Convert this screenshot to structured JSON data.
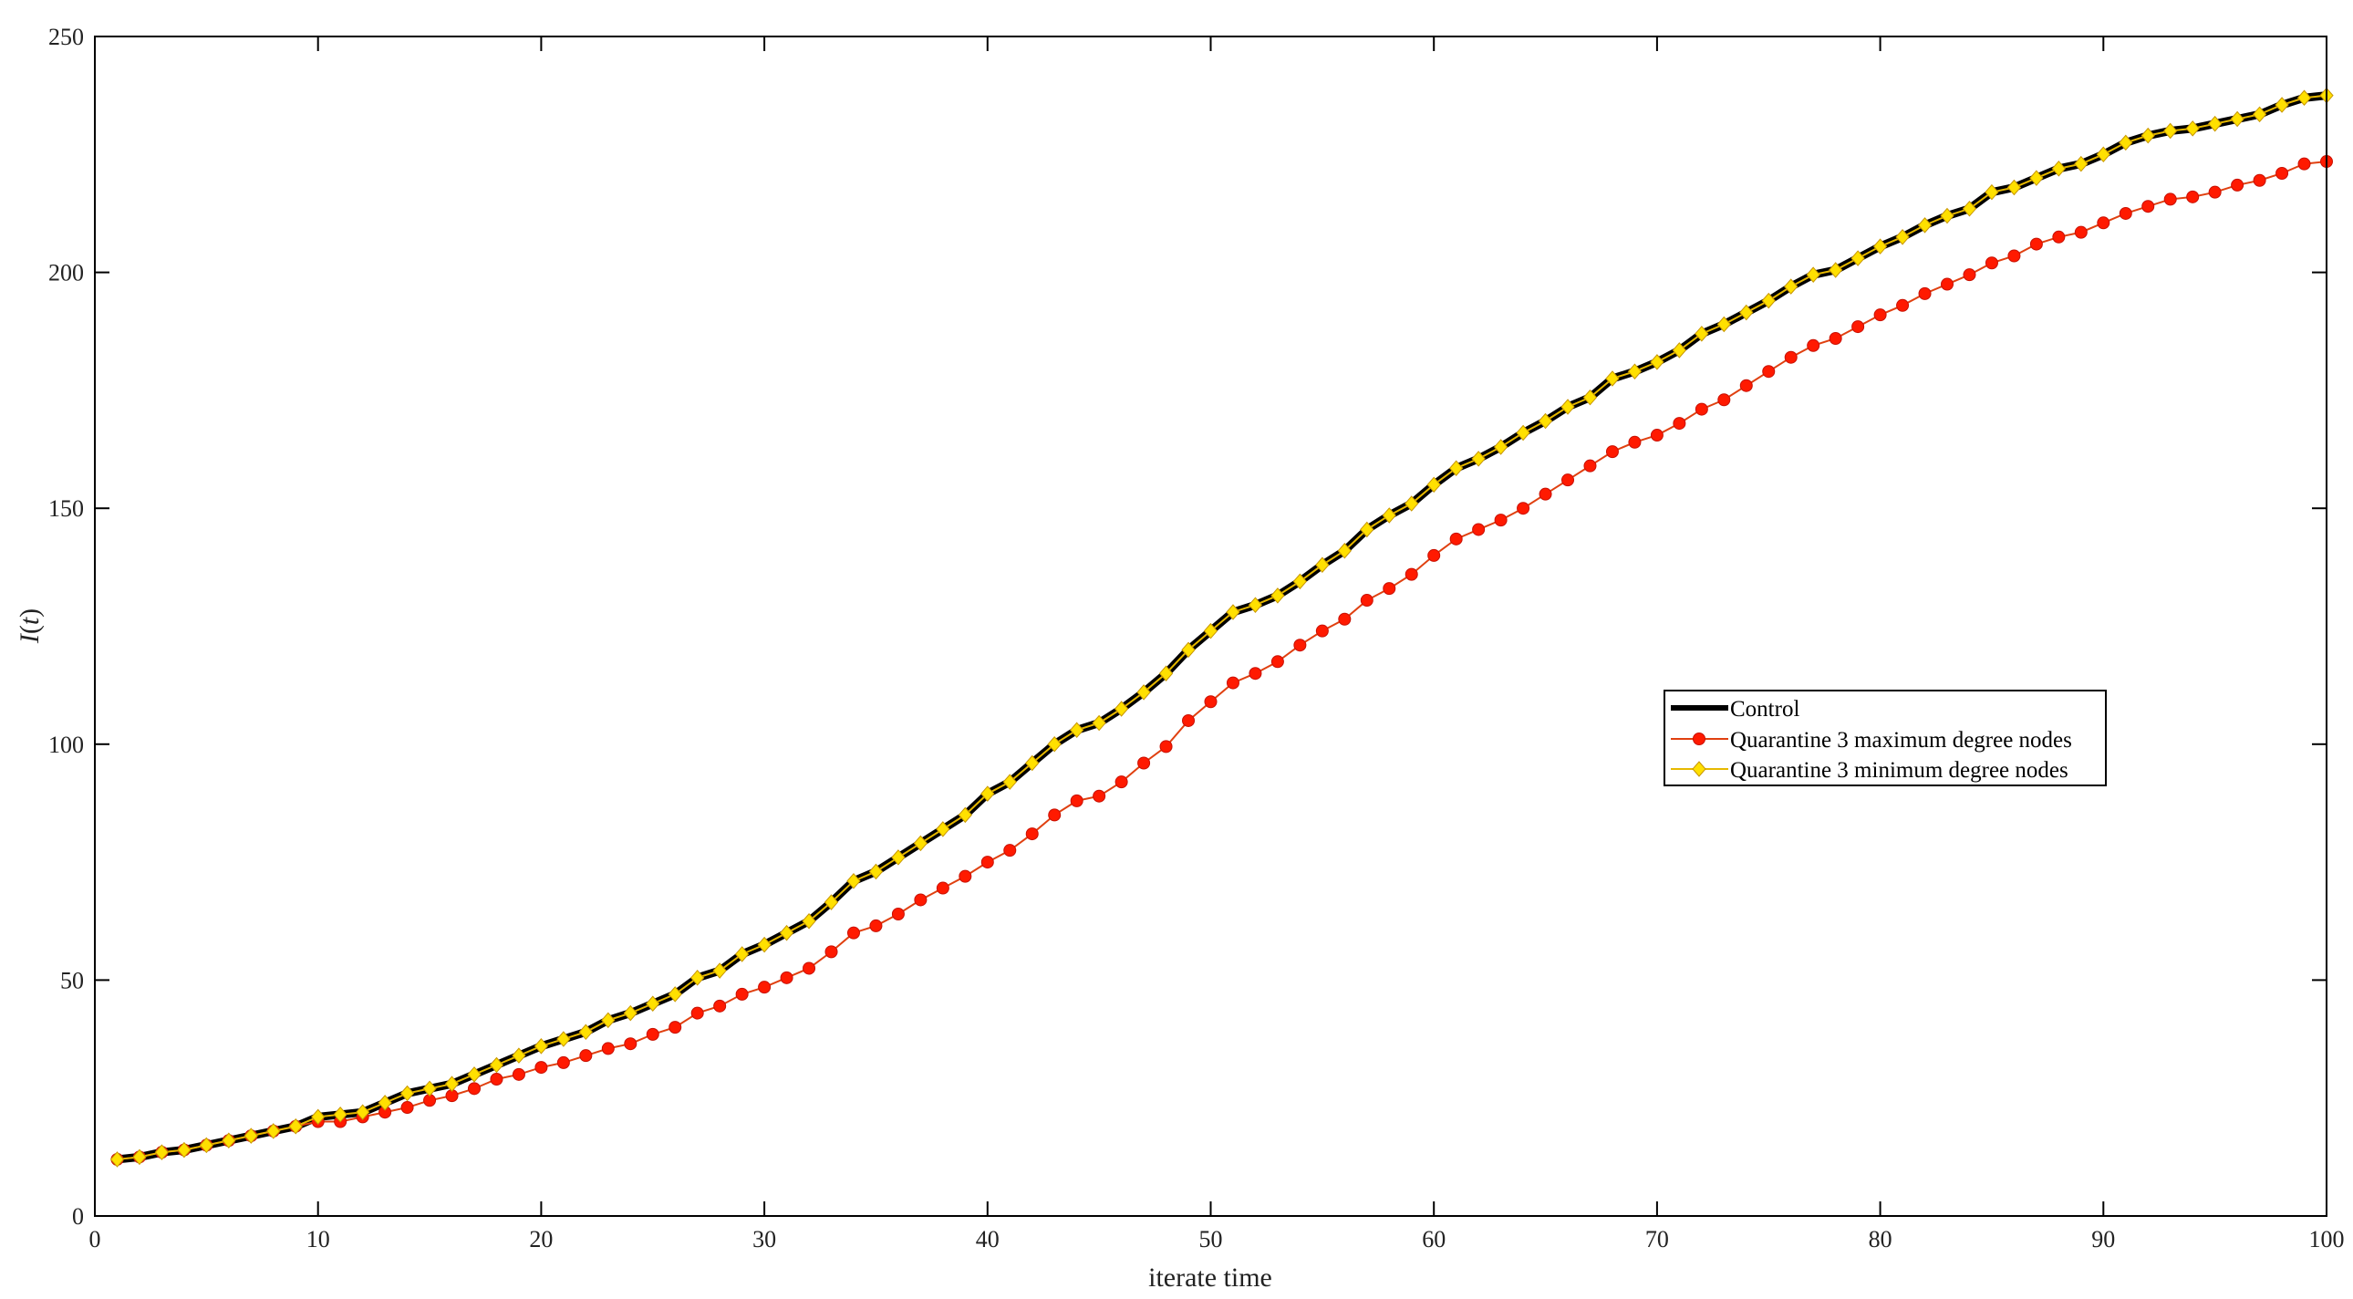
{
  "chart_data": {
    "type": "line",
    "title": "",
    "xlabel": "iterate time",
    "ylabel_main": "I",
    "ylabel_var": "t",
    "xlim": [
      0,
      100
    ],
    "ylim": [
      0,
      250
    ],
    "xticks": [
      0,
      10,
      20,
      30,
      40,
      50,
      60,
      70,
      80,
      90,
      100
    ],
    "yticks": [
      0,
      50,
      100,
      150,
      200,
      250
    ],
    "grid": false,
    "legend_position": "right-center",
    "x": [
      1,
      2,
      3,
      4,
      5,
      6,
      7,
      8,
      9,
      10,
      11,
      12,
      13,
      14,
      15,
      16,
      17,
      18,
      19,
      20,
      21,
      22,
      23,
      24,
      25,
      26,
      27,
      28,
      29,
      30,
      31,
      32,
      33,
      34,
      35,
      36,
      37,
      38,
      39,
      40,
      41,
      42,
      43,
      44,
      45,
      46,
      47,
      48,
      49,
      50,
      51,
      52,
      53,
      54,
      55,
      56,
      57,
      58,
      59,
      60,
      61,
      62,
      63,
      64,
      65,
      66,
      67,
      68,
      69,
      70,
      71,
      72,
      73,
      74,
      75,
      76,
      77,
      78,
      79,
      80,
      81,
      82,
      83,
      84,
      85,
      86,
      87,
      88,
      89,
      90,
      91,
      92,
      93,
      94,
      95,
      96,
      97,
      98,
      99,
      100
    ],
    "series": [
      {
        "name": "Control",
        "color": "#000000",
        "marker": "none",
        "values": [
          12,
          12.5,
          13.5,
          14,
          15,
          16,
          17,
          18,
          19,
          21,
          21.5,
          22,
          24,
          26,
          27,
          28,
          30,
          32,
          34,
          36,
          37.5,
          39,
          41.5,
          43,
          45,
          47,
          50.5,
          52,
          55.5,
          57.5,
          60,
          62.5,
          66.5,
          71,
          73,
          76,
          79,
          82,
          85,
          89.5,
          92,
          96,
          100,
          103,
          104.5,
          107.5,
          111,
          115,
          120,
          124,
          128,
          129.5,
          131.5,
          134.5,
          138,
          141,
          145.5,
          148.5,
          151,
          155,
          158.5,
          160.5,
          163,
          166,
          168.5,
          171.5,
          173.5,
          177.5,
          179,
          181,
          183.5,
          187,
          189,
          191.5,
          194,
          197,
          199.5,
          200.5,
          203,
          205.5,
          207.5,
          210,
          212,
          213.5,
          217,
          218,
          220,
          222,
          223,
          225,
          227.5,
          229,
          230,
          230.5,
          231.5,
          232.5,
          233.5,
          235.5,
          237,
          237.5
        ]
      },
      {
        "name": "Quarantine 3 maximum degree nodes",
        "color": "#ff1a00",
        "line_color": "#e04010",
        "marker": "circle",
        "values": [
          12,
          12.5,
          13.5,
          14,
          15,
          16,
          17,
          18,
          19,
          20,
          20,
          21,
          22,
          23,
          24.5,
          25.5,
          27,
          29,
          30,
          31.5,
          32.5,
          34,
          35.5,
          36.5,
          38.5,
          40,
          43,
          44.5,
          47,
          48.5,
          50.5,
          52.5,
          56,
          60,
          61.5,
          64,
          67,
          69.5,
          72,
          75,
          77.5,
          81,
          85,
          88,
          89,
          92,
          96,
          99.5,
          105,
          109,
          113,
          115,
          117.5,
          121,
          124,
          126.5,
          130.5,
          133,
          136,
          140,
          143.5,
          145.5,
          147.5,
          150,
          153,
          156,
          159,
          162,
          164,
          165.5,
          168,
          171,
          173,
          176,
          179,
          182,
          184.5,
          186,
          188.5,
          191,
          193,
          195.5,
          197.5,
          199.5,
          202,
          203.5,
          206,
          207.5,
          208.5,
          210.5,
          212.5,
          214,
          215.5,
          216,
          217,
          218.5,
          219.5,
          221,
          223,
          223.5
        ]
      },
      {
        "name": "Quarantine 3 minimum degree nodes",
        "color": "#ffe000",
        "line_color": "#e6b800",
        "marker": "diamond",
        "values": [
          12,
          12.5,
          13.5,
          14,
          15,
          16,
          17,
          18,
          19,
          21,
          21.5,
          22,
          24,
          26,
          27,
          28,
          30,
          32,
          34,
          36,
          37.5,
          39,
          41.5,
          43,
          45,
          47,
          50.5,
          52,
          55.5,
          57.5,
          60,
          62.5,
          66.5,
          71,
          73,
          76,
          79,
          82,
          85,
          89.5,
          92,
          96,
          100,
          103,
          104.5,
          107.5,
          111,
          115,
          120,
          124,
          128,
          129.5,
          131.5,
          134.5,
          138,
          141,
          145.5,
          148.5,
          151,
          155,
          158.5,
          160.5,
          163,
          166,
          168.5,
          171.5,
          173.5,
          177.5,
          179,
          181,
          183.5,
          187,
          189,
          191.5,
          194,
          197,
          199.5,
          200.5,
          203,
          205.5,
          207.5,
          210,
          212,
          213.5,
          217,
          218,
          220,
          222,
          223,
          225,
          227.5,
          229,
          230,
          230.5,
          231.5,
          232.5,
          233.5,
          235.5,
          237,
          237.5
        ]
      }
    ]
  }
}
